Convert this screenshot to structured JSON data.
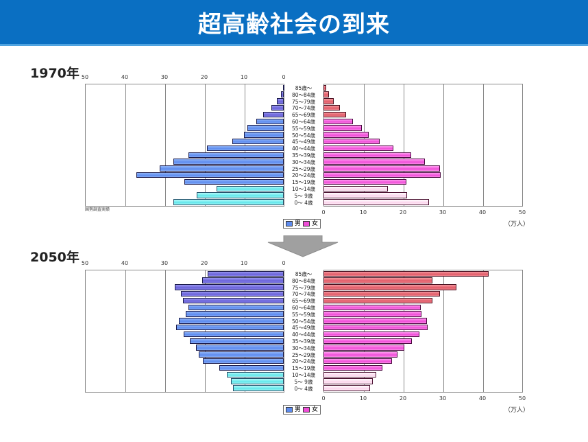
{
  "header": {
    "title": "超高齢社会の到来"
  },
  "charts": [
    {
      "year_label": "1970年",
      "source_note": "国勢調査実績",
      "legend": [
        "男",
        "女"
      ],
      "unit": "（万人）",
      "left_ticks": [
        "50",
        "40",
        "30",
        "20",
        "10",
        "0"
      ],
      "right_ticks": [
        "0",
        "10",
        "20",
        "30",
        "40",
        "50"
      ]
    },
    {
      "year_label": "2050年",
      "legend": [
        "男",
        "女"
      ],
      "unit": "（万人）",
      "left_ticks": [
        "50",
        "40",
        "30",
        "20",
        "10",
        "0"
      ],
      "right_ticks": [
        "0",
        "10",
        "20",
        "30",
        "40",
        "50"
      ]
    }
  ],
  "age_groups": [
    "85歳～",
    "80～84歳",
    "75～79歳",
    "70～74歳",
    "65～69歳",
    "60～64歳",
    "55～59歳",
    "50～54歳",
    "45～49歳",
    "40～44歳",
    "35～39歳",
    "30～34歳",
    "25～29歳",
    "20～24歳",
    "15～19歳",
    "10～14歳",
    "5～ 9歳",
    "0～ 4歳"
  ],
  "colors": {
    "title_bg": "#0a6fc2",
    "male_old": "#6a62d8",
    "male_working": "#5e8cef",
    "male_young": "#5fe6ea",
    "female_old": "#e15a68",
    "female_working": "#f04ed8",
    "female_young": "#fbd4ec",
    "arrow": "#a0a0a0"
  },
  "chart_data": [
    {
      "type": "bar",
      "title": "1970年",
      "orientation": "horizontal-pyramid",
      "categories": [
        "85歳～",
        "80～84歳",
        "75～79歳",
        "70～74歳",
        "65～69歳",
        "60～64歳",
        "55～59歳",
        "50～54歳",
        "45～49歳",
        "40～44歳",
        "35～39歳",
        "30～34歳",
        "25～29歳",
        "20～24歳",
        "15～19歳",
        "10～14歳",
        "5～ 9歳",
        "0～ 4歳"
      ],
      "series": [
        {
          "name": "男",
          "values": [
            0.2,
            0.7,
            1.7,
            3.1,
            5.2,
            6.9,
            9.1,
            10.0,
            12.9,
            19.3,
            24.0,
            27.8,
            31.2,
            37.0,
            25.0,
            16.9,
            21.9,
            27.8
          ]
        },
        {
          "name": "女",
          "values": [
            0.7,
            1.4,
            2.6,
            4.1,
            5.7,
            7.4,
            9.7,
            11.4,
            14.1,
            17.6,
            22.0,
            25.5,
            29.3,
            29.5,
            20.9,
            16.2,
            21.0,
            26.6
          ]
        }
      ],
      "xlabel": "（万人）",
      "xlim": [
        0,
        50
      ],
      "ticks": [
        0,
        10,
        20,
        30,
        40,
        50
      ],
      "grid": true,
      "legend_position": "bottom-center",
      "annotations": [
        "国勢調査実績"
      ]
    },
    {
      "type": "bar",
      "title": "2050年",
      "orientation": "horizontal-pyramid",
      "categories": [
        "85歳～",
        "80～84歳",
        "75～79歳",
        "70～74歳",
        "65～69歳",
        "60～64歳",
        "55～59歳",
        "50～54歳",
        "45～49歳",
        "40～44歳",
        "35～39歳",
        "30～34歳",
        "25～29歳",
        "20～24歳",
        "15～19歳",
        "10～14歳",
        "5～ 9歳",
        "0～ 4歳"
      ],
      "series": [
        {
          "name": "男",
          "values": [
            19.1,
            20.5,
            27.4,
            25.9,
            25.3,
            24.0,
            24.6,
            26.4,
            27.1,
            25.2,
            23.6,
            22.1,
            21.4,
            20.3,
            16.2,
            14.3,
            13.3,
            12.8
          ]
        },
        {
          "name": "女",
          "values": [
            41.6,
            27.4,
            33.4,
            29.3,
            27.4,
            24.5,
            24.7,
            26.0,
            26.2,
            24.1,
            22.2,
            20.3,
            18.6,
            17.2,
            14.8,
            13.3,
            12.4,
            11.7
          ]
        }
      ],
      "xlabel": "（万人）",
      "xlim": [
        0,
        50
      ],
      "ticks": [
        0,
        10,
        20,
        30,
        40,
        50
      ],
      "grid": true,
      "legend_position": "bottom-center"
    }
  ]
}
